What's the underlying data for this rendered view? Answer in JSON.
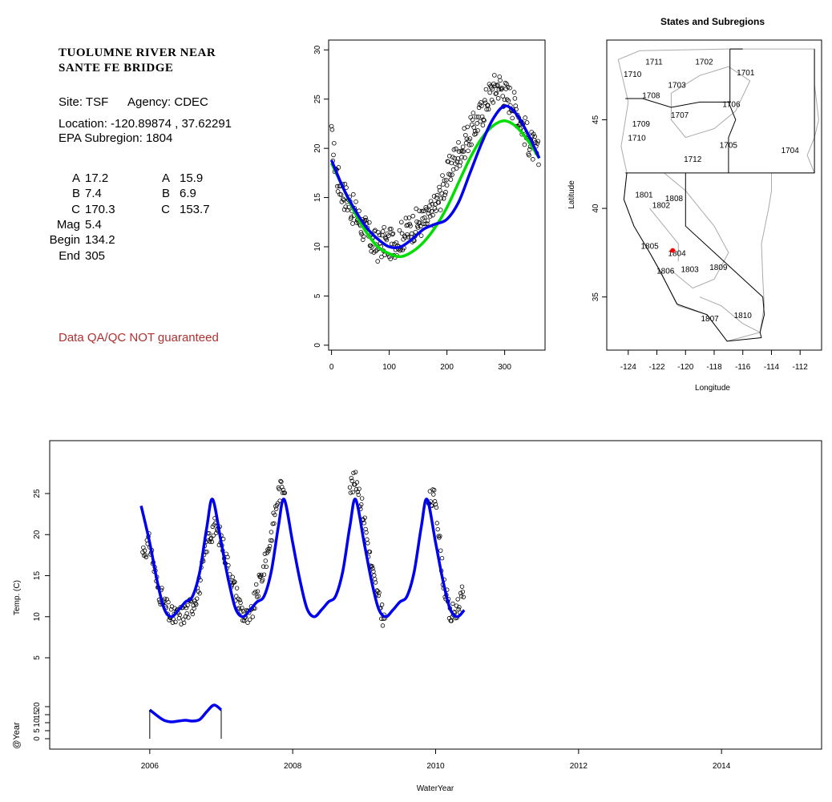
{
  "info_panel": {
    "station_title_line1": "TUOLUMNE RIVER NEAR",
    "station_title_line2": "SANTE FE BRIDGE",
    "site_label": "Site: TSF",
    "agency_label": "Agency: CDEC",
    "location": "Location: -120.89874 , 37.62291",
    "subregion": "EPA Subregion: 1804",
    "params_left": [
      {
        "label": "A",
        "value": "17.2"
      },
      {
        "label": "B",
        "value": "7.4"
      },
      {
        "label": "C",
        "value": "170.3"
      },
      {
        "label": "Mag",
        "value": "5.4"
      },
      {
        "label": "Begin",
        "value": "134.2"
      },
      {
        "label": "End",
        "value": "305"
      }
    ],
    "params_right": [
      {
        "label": "A",
        "value": "15.9"
      },
      {
        "label": "B",
        "value": "6.9"
      },
      {
        "label": "C",
        "value": "153.7"
      }
    ],
    "qa_note": "Data QA/QC NOT guaranteed",
    "qa_color": "#b03030"
  },
  "chart_data": [
    {
      "id": "seasonal",
      "type": "scatter",
      "title": "",
      "xlabel": "",
      "ylabel": "",
      "xlim": [
        -5,
        370
      ],
      "ylim": [
        -0.5,
        31
      ],
      "xticks": [
        0,
        100,
        200,
        300
      ],
      "yticks": [
        0,
        5,
        10,
        15,
        20,
        25,
        30
      ],
      "series": [
        {
          "kind": "points",
          "color": "#000000",
          "x": [
            0,
            10,
            20,
            30,
            40,
            50,
            60,
            70,
            80,
            90,
            100,
            110,
            120,
            130,
            140,
            150,
            160,
            170,
            180,
            190,
            200,
            210,
            220,
            230,
            240,
            250,
            260,
            270,
            280,
            290,
            300,
            310,
            320,
            330,
            340,
            350,
            360
          ],
          "y": [
            21.0,
            17.0,
            15.5,
            14.5,
            13.5,
            12.5,
            11.5,
            10.5,
            10.0,
            10.5,
            10.2,
            10.5,
            11.0,
            11.5,
            12.0,
            12.5,
            12.5,
            13.0,
            14.0,
            15.5,
            17.0,
            18.5,
            19.5,
            20.5,
            21.5,
            22.5,
            23.5,
            25.0,
            26.0,
            26.5,
            25.5,
            25.0,
            24.0,
            22.5,
            21.0,
            20.0,
            19.0
          ]
        },
        {
          "kind": "line",
          "color": "#00dd00",
          "x": [
            0,
            20,
            40,
            60,
            80,
            100,
            120,
            140,
            160,
            180,
            200,
            220,
            240,
            260,
            280,
            300,
            320,
            340,
            360
          ],
          "y": [
            18.5,
            16.0,
            13.5,
            11.5,
            10.0,
            9.3,
            9.0,
            9.5,
            10.5,
            12.0,
            14.0,
            16.5,
            19.0,
            21.0,
            22.3,
            22.8,
            22.2,
            20.8,
            19.0
          ]
        },
        {
          "kind": "line",
          "color": "#0000ee",
          "x": [
            0,
            20,
            40,
            60,
            80,
            100,
            120,
            140,
            160,
            180,
            200,
            220,
            240,
            260,
            280,
            300,
            320,
            340,
            360
          ],
          "y": [
            18.8,
            16.0,
            13.8,
            12.0,
            10.8,
            10.0,
            10.0,
            10.8,
            11.8,
            12.3,
            12.8,
            14.5,
            17.5,
            20.5,
            23.0,
            24.3,
            23.5,
            21.5,
            19.0
          ]
        }
      ]
    },
    {
      "id": "map",
      "type": "map",
      "title": "States and Subregions",
      "xlabel": "Longitude",
      "ylabel": "Latitude",
      "xlim": [
        -125.5,
        -110.5
      ],
      "ylim": [
        32,
        49.5
      ],
      "xticks": [
        -124,
        -122,
        -120,
        -118,
        -116,
        -114,
        -112
      ],
      "yticks": [
        35,
        40,
        45
      ],
      "subregions": [
        {
          "label": "1711",
          "lon": -122.2,
          "lat": 48.3
        },
        {
          "label": "1702",
          "lon": -118.7,
          "lat": 48.3
        },
        {
          "label": "1701",
          "lon": -115.8,
          "lat": 47.7
        },
        {
          "label": "1710",
          "lon": -123.7,
          "lat": 47.6
        },
        {
          "label": "1703",
          "lon": -120.6,
          "lat": 47.0
        },
        {
          "label": "1708",
          "lon": -122.4,
          "lat": 46.4
        },
        {
          "label": "1706",
          "lon": -116.8,
          "lat": 45.9
        },
        {
          "label": "1707",
          "lon": -120.4,
          "lat": 45.3
        },
        {
          "label": "1709",
          "lon": -123.1,
          "lat": 44.8
        },
        {
          "label": "1710",
          "lon": -123.4,
          "lat": 44.0
        },
        {
          "label": "1705",
          "lon": -117.0,
          "lat": 43.6
        },
        {
          "label": "1704",
          "lon": -112.7,
          "lat": 43.3
        },
        {
          "label": "1712",
          "lon": -119.5,
          "lat": 42.8
        },
        {
          "label": "1801",
          "lon": -122.9,
          "lat": 40.8
        },
        {
          "label": "1808",
          "lon": -120.8,
          "lat": 40.6
        },
        {
          "label": "1802",
          "lon": -121.7,
          "lat": 40.2
        },
        {
          "label": "1805",
          "lon": -122.5,
          "lat": 37.9
        },
        {
          "label": "1804",
          "lon": -120.6,
          "lat": 37.5
        },
        {
          "label": "1806",
          "lon": -121.4,
          "lat": 36.5
        },
        {
          "label": "1803",
          "lon": -119.7,
          "lat": 36.6
        },
        {
          "label": "1809",
          "lon": -117.7,
          "lat": 36.7
        },
        {
          "label": "1810",
          "lon": -116.0,
          "lat": 34.0
        },
        {
          "label": "1807",
          "lon": -118.3,
          "lat": 33.8
        }
      ],
      "site": {
        "lon": -120.89874,
        "lat": 37.62291,
        "color": "#ff0000"
      }
    },
    {
      "id": "timeseries",
      "type": "line",
      "title": "",
      "xlabel": "WaterYear",
      "ylabel": "Temp. (C)",
      "ylabel2": "@Year",
      "xlim": [
        2004.6,
        2015.4
      ],
      "ylim": [
        -10,
        30.5
      ],
      "xticks": [
        2006,
        2008,
        2010,
        2012,
        2014
      ],
      "yticks": [
        5,
        10,
        15,
        20,
        25
      ],
      "yticks2": [
        0,
        5,
        10,
        15,
        20
      ],
      "series": [
        {
          "kind": "points",
          "color": "#000000",
          "x": [
            2005.9,
            2006.0,
            2006.1,
            2006.2,
            2006.3,
            2006.4,
            2006.5,
            2006.6,
            2006.7,
            2006.8,
            2006.9,
            2007.0,
            2007.1,
            2007.2,
            2007.3,
            2007.4,
            2007.5,
            2007.6,
            2007.7,
            2007.8,
            2007.9,
            2008.8,
            2008.9,
            2009.0,
            2009.1,
            2009.2,
            2009.3,
            2009.9,
            2010.0,
            2010.1,
            2010.2,
            2010.3,
            2010.4
          ],
          "y": [
            18.0,
            19.0,
            14.0,
            11.5,
            10.0,
            10.0,
            10.5,
            11.5,
            14.0,
            19.0,
            21.0,
            19.5,
            16.0,
            13.0,
            10.5,
            9.5,
            13.0,
            16.0,
            20.0,
            25.0,
            26.5,
            26.0,
            26.5,
            22.0,
            16.0,
            12.0,
            9.0,
            24.0,
            24.5,
            15.0,
            10.0,
            11.0,
            13.0
          ]
        },
        {
          "kind": "line",
          "color": "#0000ee",
          "x": [
            2005.88,
            2006.0,
            2006.1,
            2006.2,
            2006.3,
            2006.4,
            2006.5,
            2006.6,
            2006.7,
            2006.8,
            2006.88,
            2007.0,
            2007.1,
            2007.2,
            2007.3,
            2007.4,
            2007.5,
            2007.6,
            2007.7,
            2007.8,
            2007.88
          ],
          "y": [
            23.5,
            19.0,
            14.5,
            11.0,
            10.0,
            10.8,
            11.8,
            12.5,
            15.5,
            21.0,
            24.3,
            22.5,
            17.0,
            12.0,
            10.0,
            11.0,
            12.0,
            12.6,
            16.0,
            21.5,
            24.3
          ],
          "period": 1.0,
          "x_end": 2010.4
        },
        {
          "kind": "line",
          "color": "#0000ee",
          "panel": "lower",
          "x": [
            2006.0,
            2006.1,
            2006.2,
            2006.3,
            2006.4,
            2006.5,
            2006.6,
            2006.7,
            2006.8,
            2006.9,
            2007.0
          ],
          "y": [
            18.0,
            14.5,
            11.5,
            10.5,
            11.0,
            11.5,
            11.0,
            12.0,
            17.0,
            21.0,
            18.0
          ]
        }
      ]
    }
  ]
}
